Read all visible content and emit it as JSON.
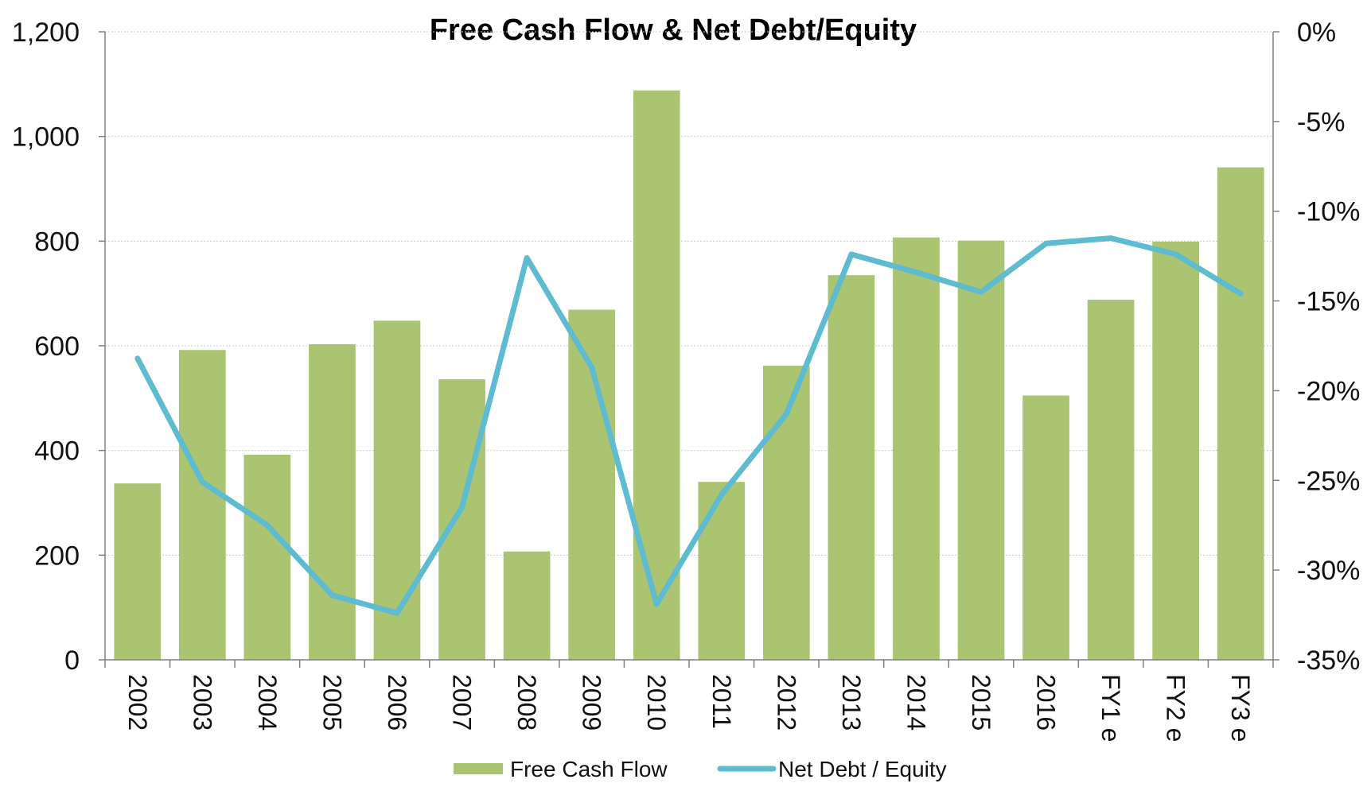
{
  "chart_data": {
    "type": "bar",
    "title": "Free Cash Flow & Net Debt/Equity",
    "categories": [
      "2002",
      "2003",
      "2004",
      "2005",
      "2006",
      "2007",
      "2008",
      "2009",
      "2010",
      "2011",
      "2012",
      "2013",
      "2014",
      "2015",
      "2016",
      "FY1 e",
      "FY2 e",
      "FY3 e"
    ],
    "series": [
      {
        "name": "Free Cash Flow",
        "type": "bar",
        "axis": "left",
        "color": "#aac472",
        "values": [
          337,
          592,
          392,
          603,
          648,
          536,
          207,
          669,
          1088,
          340,
          562,
          735,
          807,
          801,
          505,
          688,
          799,
          941
        ]
      },
      {
        "name": "Net Debt / Equity",
        "type": "line",
        "axis": "right",
        "color": "#5ebbd0",
        "values": [
          -18.2,
          -25.1,
          -27.5,
          -31.4,
          -32.4,
          -26.5,
          -12.6,
          -18.7,
          -31.9,
          -25.8,
          -21.3,
          -12.4,
          -13.4,
          -14.5,
          -11.8,
          -11.5,
          -12.4,
          -14.6
        ]
      }
    ],
    "y_left": {
      "lim": [
        0,
        1200
      ],
      "ticks": [
        0,
        200,
        400,
        600,
        800,
        1000,
        1200
      ],
      "tick_labels": [
        "0",
        "200",
        "400",
        "600",
        "800",
        "1,000",
        "1,200"
      ]
    },
    "y_right": {
      "lim": [
        -35,
        0
      ],
      "ticks": [
        -35,
        -30,
        -25,
        -20,
        -15,
        -10,
        -5,
        0
      ],
      "tick_labels": [
        "-35%",
        "-30%",
        "-25%",
        "-20%",
        "-15%",
        "-10%",
        "-5%",
        "0%"
      ]
    },
    "grid": true,
    "legend": "bottom-center"
  }
}
